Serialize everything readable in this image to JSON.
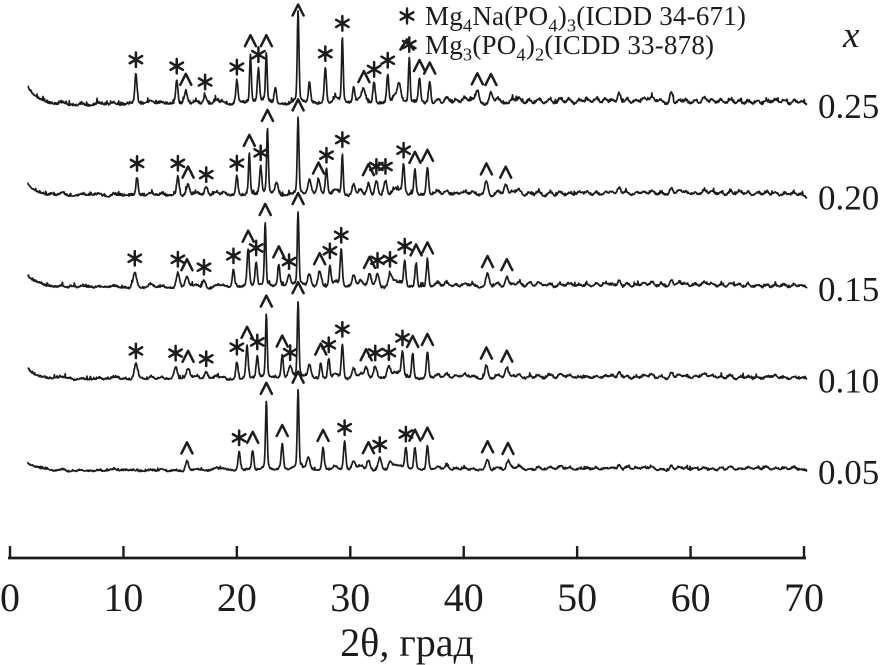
{
  "figure": {
    "background": "#ffffff",
    "ink": "#1c1c1c"
  },
  "chart_data": {
    "type": "line",
    "description": "Five stacked powder X-ray diffraction patterns (intensity vs 2-theta) for compositions x = 0.05 to 0.25; peaks marked with asterisk = Mg4Na(PO4)3 phase, caret = Mg3(PO4)2 phase",
    "xlabel": "2θ, град",
    "x_range": [
      0,
      70
    ],
    "x_ticks": [
      0,
      10,
      20,
      30,
      40,
      50,
      60,
      70
    ],
    "right_axis_title": "x",
    "grid": false,
    "legend_position": "top-center",
    "legend": [
      {
        "marker": "star",
        "parts": [
          [
            "t",
            "Mg"
          ],
          [
            "s",
            "4"
          ],
          [
            "t",
            "Na(PO"
          ],
          [
            "s",
            "4"
          ],
          [
            "t",
            ")"
          ],
          [
            "s",
            "3"
          ],
          [
            "t",
            "(ICDD 34-671)"
          ]
        ]
      },
      {
        "marker": "caret",
        "parts": [
          [
            "t",
            "Mg"
          ],
          [
            "s",
            "3"
          ],
          [
            "t",
            "(PO"
          ],
          [
            "s",
            "4"
          ],
          [
            "t",
            ")"
          ],
          [
            "s",
            "2"
          ],
          [
            "t",
            "(ICDD 33-878)"
          ]
        ]
      }
    ],
    "minor_peaks": [
      [
        4.6,
        2
      ],
      [
        6.3,
        2
      ],
      [
        7.8,
        2
      ],
      [
        9.2,
        2
      ],
      [
        12.4,
        3
      ],
      [
        13.4,
        2
      ],
      [
        16.4,
        3
      ],
      [
        18.2,
        4
      ],
      [
        18.8,
        3
      ],
      [
        28.7,
        6
      ],
      [
        30.9,
        6
      ],
      [
        33.9,
        7
      ],
      [
        34.4,
        5
      ],
      [
        37.7,
        5
      ],
      [
        38.5,
        6
      ],
      [
        39.3,
        4
      ],
      [
        40.1,
        5
      ],
      [
        40.8,
        4
      ],
      [
        43.0,
        5
      ],
      [
        44.3,
        4
      ],
      [
        44.9,
        6
      ],
      [
        45.8,
        4
      ],
      [
        46.6,
        5
      ],
      [
        47.6,
        4
      ],
      [
        48.5,
        5
      ],
      [
        49.3,
        4
      ],
      [
        50.2,
        4
      ],
      [
        50.9,
        4
      ],
      [
        51.7,
        4
      ],
      [
        52.5,
        4
      ],
      [
        53.1,
        4
      ],
      [
        54.4,
        5
      ],
      [
        55.2,
        4
      ],
      [
        55.9,
        5
      ],
      [
        56.6,
        6
      ],
      [
        57.4,
        4
      ],
      [
        59.0,
        5
      ],
      [
        59.6,
        4
      ],
      [
        60.4,
        4
      ],
      [
        61.2,
        6
      ],
      [
        61.9,
        4
      ],
      [
        62.7,
        4
      ],
      [
        63.5,
        5
      ],
      [
        64.3,
        4
      ],
      [
        65.1,
        4
      ],
      [
        65.9,
        4
      ],
      [
        66.7,
        4
      ],
      [
        67.5,
        4
      ],
      [
        68.3,
        4
      ],
      [
        69.1,
        4
      ],
      [
        69.8,
        3
      ]
    ],
    "series": [
      {
        "label": "0.25",
        "seed": 11,
        "noise": 1.9,
        "bg": 18,
        "minor_scale": 1.15,
        "peaks": [
          [
            11.1,
            28
          ],
          [
            14.7,
            22
          ],
          [
            15.5,
            11
          ],
          [
            17.2,
            8
          ],
          [
            20.0,
            21
          ],
          [
            21.2,
            45
          ],
          [
            21.9,
            31
          ],
          [
            22.6,
            45
          ],
          [
            23.4,
            15
          ],
          [
            25.4,
            84
          ],
          [
            26.4,
            19
          ],
          [
            27.8,
            33
          ],
          [
            29.3,
            60
          ],
          [
            30.3,
            15
          ],
          [
            31.2,
            11
          ],
          [
            32.1,
            19
          ],
          [
            33.3,
            27
          ],
          [
            34.3,
            13
          ],
          [
            35.2,
            41
          ],
          [
            36.1,
            23
          ],
          [
            37.0,
            21
          ],
          [
            41.2,
            11
          ],
          [
            42.4,
            11
          ],
          [
            53.7,
            11
          ],
          [
            58.3,
            12
          ]
        ],
        "stars": [
          11.1,
          14.7,
          17.2,
          20.0,
          21.9,
          27.8,
          29.3,
          32.1,
          33.3,
          35.2
        ],
        "carets": [
          15.5,
          21.2,
          22.6,
          25.4,
          31.2,
          36.1,
          37.0,
          41.2,
          42.4
        ]
      },
      {
        "label": "0.20",
        "seed": 22,
        "noise": 1.7,
        "bg": 13,
        "minor_scale": 0.95,
        "peaks": [
          [
            11.2,
            17
          ],
          [
            14.8,
            17
          ],
          [
            15.7,
            10
          ],
          [
            17.3,
            7
          ],
          [
            20.0,
            17
          ],
          [
            21.1,
            38
          ],
          [
            22.1,
            25
          ],
          [
            22.7,
            60
          ],
          [
            23.5,
            11
          ],
          [
            25.4,
            70
          ],
          [
            26.4,
            14
          ],
          [
            27.2,
            13
          ],
          [
            27.9,
            24
          ],
          [
            29.3,
            38
          ],
          [
            30.3,
            11
          ],
          [
            31.6,
            12
          ],
          [
            32.3,
            14
          ],
          [
            33.1,
            14
          ],
          [
            34.7,
            27
          ],
          [
            35.7,
            23
          ],
          [
            36.8,
            25
          ],
          [
            42.0,
            13
          ],
          [
            43.7,
            10
          ],
          [
            53.7,
            7
          ],
          [
            58.3,
            7
          ]
        ],
        "stars": [
          11.2,
          14.8,
          17.3,
          20.0,
          22.1,
          27.9,
          29.3,
          32.3,
          33.1,
          34.7
        ],
        "carets": [
          15.7,
          21.1,
          22.7,
          25.4,
          27.2,
          31.6,
          35.7,
          36.8,
          42.0,
          43.7
        ]
      },
      {
        "label": "0.15",
        "seed": 33,
        "noise": 1.5,
        "bg": 12,
        "minor_scale": 0.85,
        "peaks": [
          [
            11.0,
            14
          ],
          [
            14.8,
            13
          ],
          [
            15.6,
            9
          ],
          [
            17.1,
            6
          ],
          [
            19.7,
            16
          ],
          [
            21.0,
            34
          ],
          [
            21.7,
            22
          ],
          [
            22.5,
            58
          ],
          [
            23.7,
            20
          ],
          [
            24.6,
            10
          ],
          [
            25.4,
            68
          ],
          [
            26.4,
            12
          ],
          [
            27.3,
            14
          ],
          [
            28.2,
            20
          ],
          [
            29.2,
            34
          ],
          [
            30.3,
            10
          ],
          [
            31.7,
            11
          ],
          [
            32.4,
            12
          ],
          [
            33.5,
            12
          ],
          [
            34.8,
            24
          ],
          [
            35.8,
            22
          ],
          [
            36.8,
            24
          ],
          [
            42.1,
            12
          ],
          [
            43.8,
            9
          ],
          [
            53.7,
            6
          ],
          [
            58.3,
            6
          ]
        ],
        "stars": [
          11.0,
          14.8,
          17.1,
          19.7,
          21.7,
          24.6,
          28.2,
          29.2,
          32.4,
          33.5,
          34.8
        ],
        "carets": [
          15.6,
          21.0,
          22.5,
          23.7,
          25.4,
          27.3,
          31.7,
          35.8,
          36.8,
          42.1,
          43.8
        ]
      },
      {
        "label": "0.10",
        "seed": 44,
        "noise": 1.5,
        "bg": 11,
        "minor_scale": 0.8,
        "peaks": [
          [
            11.1,
            13
          ],
          [
            14.6,
            11
          ],
          [
            15.7,
            9
          ],
          [
            17.3,
            6
          ],
          [
            20.0,
            16
          ],
          [
            20.9,
            30
          ],
          [
            21.8,
            20
          ],
          [
            22.6,
            58
          ],
          [
            24.0,
            22
          ],
          [
            24.7,
            10
          ],
          [
            25.4,
            70
          ],
          [
            26.4,
            11
          ],
          [
            27.4,
            15
          ],
          [
            28.1,
            18
          ],
          [
            29.3,
            32
          ],
          [
            30.3,
            9
          ],
          [
            31.4,
            10
          ],
          [
            32.2,
            11
          ],
          [
            33.4,
            11
          ],
          [
            34.6,
            22
          ],
          [
            35.5,
            22
          ],
          [
            36.8,
            24
          ],
          [
            42.0,
            12
          ],
          [
            43.8,
            9
          ],
          [
            53.7,
            6
          ],
          [
            58.3,
            6
          ]
        ],
        "stars": [
          11.1,
          14.6,
          17.3,
          20.0,
          21.8,
          24.7,
          28.1,
          29.3,
          32.2,
          33.4,
          34.6
        ],
        "carets": [
          15.7,
          20.9,
          22.6,
          24.0,
          25.4,
          27.4,
          31.4,
          35.5,
          36.8,
          42.0,
          43.8
        ]
      },
      {
        "label": "0.05",
        "seed": 55,
        "noise": 1.2,
        "bg": 8,
        "minor_scale": 0.7,
        "peaks": [
          [
            15.6,
            9
          ],
          [
            20.2,
            17
          ],
          [
            21.4,
            18
          ],
          [
            22.6,
            62
          ],
          [
            24.0,
            24
          ],
          [
            25.4,
            72
          ],
          [
            26.3,
            10
          ],
          [
            27.6,
            20
          ],
          [
            29.5,
            26
          ],
          [
            30.3,
            8
          ],
          [
            31.6,
            9
          ],
          [
            32.6,
            11
          ],
          [
            33.5,
            8
          ],
          [
            34.9,
            20
          ],
          [
            35.7,
            20
          ],
          [
            36.8,
            22
          ],
          [
            42.1,
            10
          ],
          [
            43.9,
            8
          ],
          [
            53.7,
            5
          ],
          [
            58.3,
            5
          ]
        ],
        "stars": [
          20.2,
          29.5,
          32.6,
          34.9
        ],
        "carets": [
          15.6,
          21.4,
          22.6,
          24.0,
          25.4,
          27.6,
          31.6,
          35.7,
          36.8,
          42.1,
          43.9
        ]
      }
    ]
  }
}
